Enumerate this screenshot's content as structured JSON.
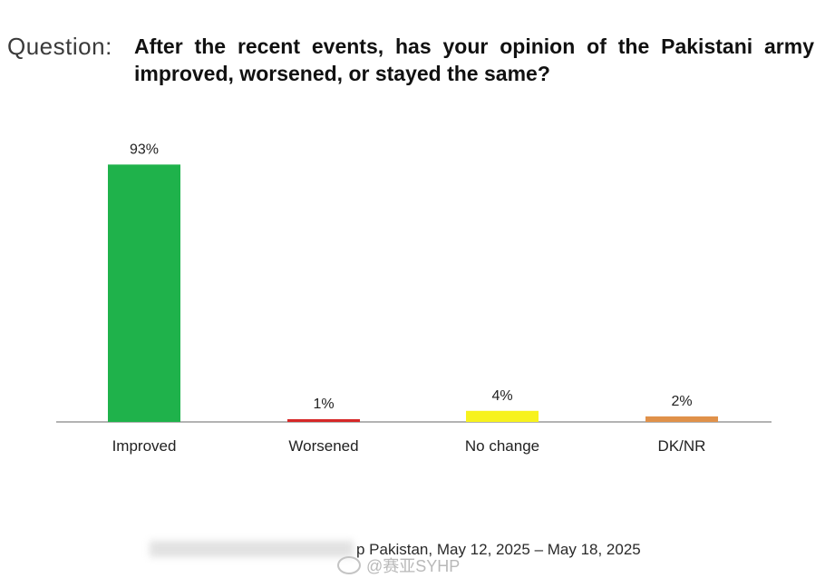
{
  "question": {
    "label": "Question:",
    "text": "After the recent events, has your opinion of the Pakistani army improved, worsened, or stayed the same?"
  },
  "chart_data": {
    "type": "bar",
    "title": "",
    "xlabel": "",
    "ylabel": "",
    "categories": [
      "Improved",
      "Worsened",
      "No change",
      "DK/NR"
    ],
    "values": [
      93,
      1,
      4,
      2
    ],
    "value_labels": [
      "93%",
      "1%",
      "4%",
      "2%"
    ],
    "colors": [
      "#1fb24b",
      "#d62828",
      "#f7f21d",
      "#e0914a"
    ],
    "ylim": [
      0,
      100
    ],
    "grid": false,
    "legend": "none"
  },
  "footer": {
    "source": "p Pakistan, May 12, 2025 – May 18, 2025",
    "watermark": "@赛亚SYHP"
  }
}
